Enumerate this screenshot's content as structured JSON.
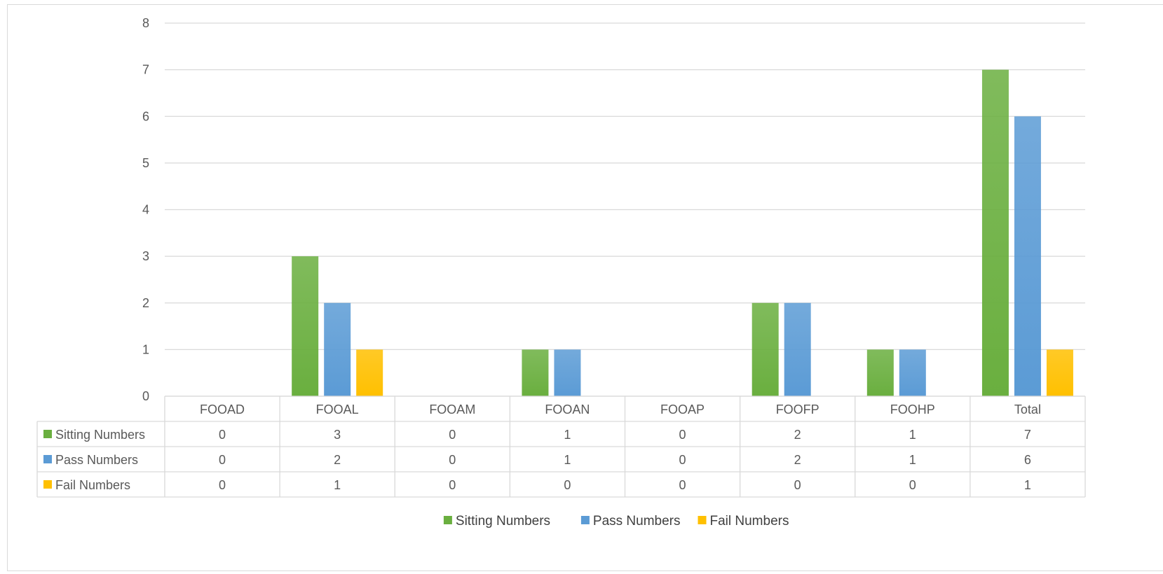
{
  "chart_data": {
    "type": "bar",
    "categories": [
      "FOOAD",
      "FOOAL",
      "FOOAM",
      "FOOAN",
      "FOOAP",
      "FOOFP",
      "FOOHP",
      "Total"
    ],
    "series": [
      {
        "name": "Sitting Numbers",
        "values": [
          0,
          3,
          0,
          1,
          0,
          2,
          1,
          7
        ],
        "color": "#6aaf3f"
      },
      {
        "name": "Pass Numbers",
        "values": [
          0,
          2,
          0,
          1,
          0,
          2,
          1,
          6
        ],
        "color": "#5b9bd5"
      },
      {
        "name": "Fail Numbers",
        "values": [
          0,
          1,
          0,
          0,
          0,
          0,
          0,
          1
        ],
        "color": "#ffc000"
      }
    ],
    "ylim": [
      0,
      8
    ],
    "yticks": [
      0,
      1,
      2,
      3,
      4,
      5,
      6,
      7,
      8
    ],
    "grid": true,
    "data_table": true,
    "legend_position": "bottom"
  }
}
